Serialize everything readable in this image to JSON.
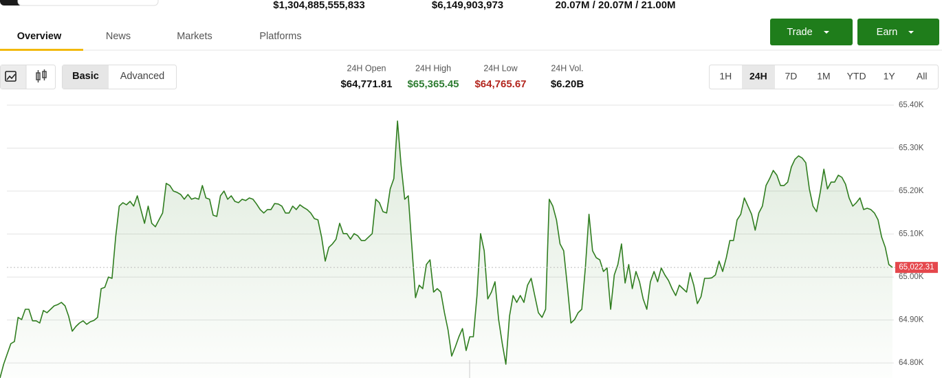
{
  "header": {
    "stats": [
      "$1,304,885,555,833",
      "$6,149,903,973",
      "20.07M / 20.07M / 21.00M"
    ]
  },
  "tabs": [
    "Overview",
    "News",
    "Markets",
    "Platforms"
  ],
  "buttons": [
    "Trade",
    "Earn"
  ],
  "view_modes": [
    "Basic",
    "Advanced"
  ],
  "stats": [
    {
      "label": "24H Open",
      "value": "$64,771.81"
    },
    {
      "label": "24H High",
      "value": "$65,365.45"
    },
    {
      "label": "24H Low",
      "value": "$64,765.67"
    },
    {
      "label": "24H Vol.",
      "value": "$6.20B"
    }
  ],
  "ranges": [
    "1H",
    "24H",
    "7D",
    "1M",
    "YTD",
    "1Y",
    "All"
  ],
  "chart_data": {
    "type": "line",
    "color": "#2f7d1f",
    "grid": true,
    "ylim": [
      64765,
      65400
    ],
    "yticks": [
      {
        "value": 64800,
        "label": "64.80K"
      },
      {
        "value": 64900,
        "label": "64.90K"
      },
      {
        "value": 65000,
        "label": "65.00K"
      },
      {
        "value": 65100,
        "label": "65.10K"
      },
      {
        "value": 65200,
        "label": "65.20K"
      },
      {
        "value": 65300,
        "label": "65.30K"
      },
      {
        "value": 65400,
        "label": "65.40K"
      }
    ],
    "price_marker": {
      "value": 65022.31,
      "label": "65,022.31"
    },
    "values": [
      64765,
      64797,
      64821,
      64845,
      64850,
      64906,
      64901,
      64925,
      64925,
      64898,
      64898,
      64893,
      64922,
      64917,
      64925,
      64933,
      64936,
      64941,
      64933,
      64909,
      64874,
      64885,
      64893,
      64898,
      64890,
      64896,
      64899,
      64906,
      64973,
      64976,
      65000,
      64997,
      65093,
      65165,
      65173,
      65168,
      65176,
      65165,
      65189,
      65157,
      65125,
      65165,
      65125,
      65117,
      65133,
      65149,
      65218,
      65213,
      65200,
      65197,
      65192,
      65181,
      65192,
      65181,
      65184,
      65181,
      65213,
      65184,
      65181,
      65144,
      65141,
      65189,
      65200,
      65181,
      65189,
      65176,
      65173,
      65181,
      65178,
      65184,
      65181,
      65170,
      65157,
      65149,
      65157,
      65157,
      65171,
      65170,
      65165,
      65149,
      65149,
      65165,
      65157,
      65168,
      65162,
      65157,
      65149,
      65136,
      65133,
      65093,
      65037,
      65069,
      65077,
      65088,
      65125,
      65101,
      65101,
      65088,
      65101,
      65096,
      65085,
      65085,
      65093,
      65101,
      65181,
      65173,
      65152,
      65149,
      65205,
      65229,
      65363,
      65261,
      65181,
      65189,
      65069,
      64952,
      64981,
      64973,
      65029,
      65040,
      64965,
      64973,
      64965,
      64917,
      64877,
      64816,
      64837,
      64861,
      64880,
      64829,
      64861,
      64861,
      64957,
      65101,
      65061,
      64949,
      64965,
      64989,
      64901,
      64845,
      64797,
      64909,
      64957,
      64941,
      64957,
      64941,
      64981,
      64997,
      64957,
      64917,
      64906,
      64925,
      65181,
      65165,
      65133,
      65077,
      65061,
      64981,
      64893,
      64901,
      64917,
      64925,
      65021,
      65146,
      65061,
      65045,
      65040,
      65013,
      65021,
      64925,
      65005,
      65029,
      65077,
      64986,
      65029,
      64973,
      65013,
      64989,
      64949,
      64925,
      64989,
      65013,
      64989,
      65021,
      65005,
      64992,
      64973,
      64957,
      64981,
      64973,
      64965,
      65010,
      64981,
      64938,
      64954,
      64997,
      64997,
      64998,
      65005,
      65037,
      65013,
      65045,
      65085,
      65085,
      65133,
      65146,
      65184,
      65165,
      65146,
      65109,
      65149,
      65165,
      65213,
      65229,
      65248,
      65237,
      65213,
      65213,
      65221,
      65256,
      65274,
      65282,
      65277,
      65266,
      65205,
      65165,
      65152,
      65197,
      65251,
      65205,
      65221,
      65221,
      65237,
      65232,
      65216,
      65184,
      65165,
      65173,
      65184,
      65157,
      65160,
      65157,
      65149,
      65133,
      65093,
      65069,
      65029,
      65022.31
    ]
  }
}
